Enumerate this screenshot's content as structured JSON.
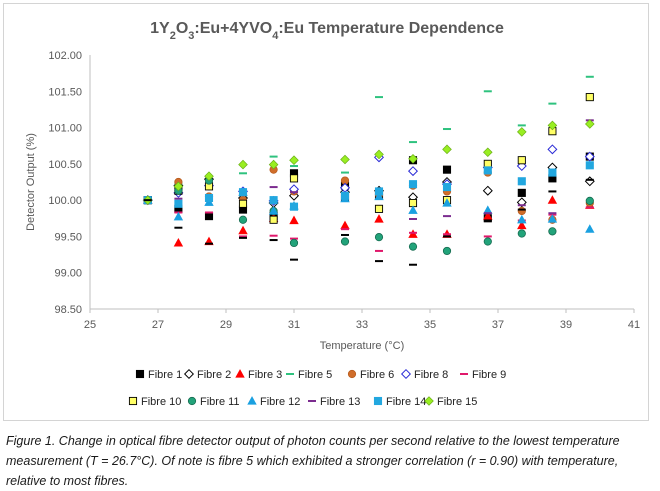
{
  "chart_data": {
    "type": "scatter",
    "title": "1Y₂O₃:Eu+4YVO₄:Eu Temperature Dependence",
    "xlabel": "Temperature (°C)",
    "ylabel": "Detector Output (%)",
    "xlim": [
      25,
      41
    ],
    "ylim": [
      98.5,
      102.0
    ],
    "x_ticks": [
      25,
      27,
      29,
      31,
      33,
      35,
      37,
      39,
      41
    ],
    "y_ticks": [
      "98.50",
      "99.00",
      "99.50",
      "100.00",
      "100.50",
      "101.00",
      "101.50",
      "102.00"
    ],
    "grid": false,
    "legend_position": "bottom",
    "series": [
      {
        "name": "Fibre 1",
        "marker": "square",
        "color": "#000000",
        "stroke": "#000000",
        "points": [
          [
            26.7,
            100.0
          ],
          [
            27.6,
            99.88
          ],
          [
            28.5,
            99.78
          ],
          [
            29.5,
            99.87
          ],
          [
            30.4,
            99.78
          ],
          [
            31.0,
            100.37
          ],
          [
            32.5,
            100.2
          ],
          [
            33.5,
            100.06
          ],
          [
            34.5,
            100.55
          ],
          [
            35.5,
            100.42
          ],
          [
            36.7,
            99.75
          ],
          [
            37.7,
            100.1
          ],
          [
            38.6,
            100.3
          ],
          [
            39.7,
            100.6
          ]
        ]
      },
      {
        "name": "Fibre 2",
        "marker": "diamond-open",
        "color": "#ffffff",
        "stroke": "#000000",
        "points": [
          [
            26.7,
            100.0
          ],
          [
            27.6,
            100.2
          ],
          [
            28.5,
            100.29
          ],
          [
            29.5,
            100.03
          ],
          [
            30.4,
            99.96
          ],
          [
            31.0,
            100.06
          ],
          [
            32.5,
            100.11
          ],
          [
            33.5,
            100.13
          ],
          [
            34.5,
            100.04
          ],
          [
            35.5,
            100.25
          ],
          [
            36.7,
            100.13
          ],
          [
            37.7,
            99.97
          ],
          [
            38.6,
            100.45
          ],
          [
            39.7,
            100.26
          ]
        ]
      },
      {
        "name": "Fibre 3",
        "marker": "triangle",
        "color": "#ff0000",
        "stroke": "#ff0000",
        "points": [
          [
            26.7,
            100.0
          ],
          [
            27.6,
            99.41
          ],
          [
            28.5,
            99.43
          ],
          [
            29.5,
            99.58
          ],
          [
            30.4,
            99.75
          ],
          [
            31.0,
            99.72
          ],
          [
            32.5,
            99.65
          ],
          [
            33.5,
            99.74
          ],
          [
            34.5,
            99.53
          ],
          [
            35.5,
            99.53
          ],
          [
            36.7,
            99.78
          ],
          [
            37.7,
            99.65
          ],
          [
            38.6,
            100.0
          ],
          [
            39.7,
            99.93
          ]
        ]
      },
      {
        "name": "Fibre 5",
        "marker": "dash",
        "color": "#2ec27e",
        "stroke": "#2ec27e",
        "points": [
          [
            26.7,
            100.0
          ],
          [
            27.6,
            100.23
          ],
          [
            28.5,
            100.27
          ],
          [
            29.5,
            100.37
          ],
          [
            30.4,
            100.6
          ],
          [
            31.0,
            100.47
          ],
          [
            32.5,
            100.38
          ],
          [
            33.5,
            101.42
          ],
          [
            34.5,
            100.8
          ],
          [
            35.5,
            100.98
          ],
          [
            36.7,
            101.5
          ],
          [
            37.7,
            101.03
          ],
          [
            38.6,
            101.33
          ],
          [
            39.7,
            101.7
          ]
        ]
      },
      {
        "name": "Fibre 6",
        "marker": "circle",
        "color": "#d06d2a",
        "stroke": "#b85c1e",
        "points": [
          [
            26.7,
            100.0
          ],
          [
            27.6,
            100.25
          ],
          [
            28.5,
            100.05
          ],
          [
            29.5,
            100.0
          ],
          [
            30.4,
            100.42
          ],
          [
            31.0,
            100.12
          ],
          [
            32.5,
            100.27
          ],
          [
            33.5,
            100.08
          ],
          [
            34.5,
            100.2
          ],
          [
            35.5,
            100.12
          ],
          [
            36.7,
            100.38
          ],
          [
            37.7,
            99.85
          ],
          [
            38.6,
            99.73
          ],
          [
            39.7,
            99.96
          ]
        ]
      },
      {
        "name": "Fibre 8",
        "marker": "diamond-open",
        "color": "#ffffff",
        "stroke": "#2b2bd6",
        "points": [
          [
            26.7,
            100.0
          ],
          [
            27.6,
            100.1
          ],
          [
            28.5,
            100.2
          ],
          [
            29.5,
            100.12
          ],
          [
            30.4,
            99.99
          ],
          [
            31.0,
            100.15
          ],
          [
            32.5,
            100.17
          ],
          [
            33.5,
            100.59
          ],
          [
            34.5,
            100.4
          ],
          [
            35.5,
            100.22
          ],
          [
            36.7,
            100.45
          ],
          [
            37.7,
            100.47
          ],
          [
            38.6,
            100.7
          ],
          [
            39.7,
            100.6
          ]
        ]
      },
      {
        "name": "Fibre 9",
        "marker": "dash",
        "color": "#e0186b",
        "stroke": "#e0186b",
        "points": [
          [
            26.7,
            100.0
          ],
          [
            27.6,
            99.83
          ],
          [
            28.5,
            99.83
          ],
          [
            29.5,
            99.5
          ],
          [
            30.4,
            99.51
          ],
          [
            31.0,
            99.47
          ],
          [
            32.5,
            99.6
          ],
          [
            33.5,
            99.3
          ],
          [
            34.5,
            99.55
          ],
          [
            35.5,
            99.53
          ],
          [
            36.7,
            99.5
          ],
          [
            37.7,
            99.72
          ],
          [
            38.6,
            99.8
          ],
          [
            39.7,
            99.9
          ]
        ]
      },
      {
        "name": "Fibre 10",
        "marker": "square",
        "color": "#ffff66",
        "stroke": "#000000",
        "points": [
          [
            26.7,
            100.0
          ],
          [
            27.6,
            100.13
          ],
          [
            28.5,
            100.19
          ],
          [
            29.5,
            99.95
          ],
          [
            30.4,
            99.73
          ],
          [
            31.0,
            100.3
          ],
          [
            32.5,
            100.04
          ],
          [
            33.5,
            99.88
          ],
          [
            34.5,
            99.96
          ],
          [
            35.5,
            100.0
          ],
          [
            36.7,
            100.5
          ],
          [
            37.7,
            100.55
          ],
          [
            38.6,
            100.95
          ],
          [
            39.7,
            101.42
          ]
        ]
      },
      {
        "name": "Fibre 11",
        "marker": "circle",
        "color": "#22a37a",
        "stroke": "#166b50",
        "points": [
          [
            26.7,
            100.0
          ],
          [
            27.6,
            100.13
          ],
          [
            28.5,
            100.27
          ],
          [
            29.5,
            99.73
          ],
          [
            30.4,
            99.85
          ],
          [
            31.0,
            99.41
          ],
          [
            32.5,
            99.43
          ],
          [
            33.5,
            99.49
          ],
          [
            34.5,
            99.36
          ],
          [
            35.5,
            99.3
          ],
          [
            36.7,
            99.43
          ],
          [
            37.7,
            99.54
          ],
          [
            38.6,
            99.57
          ],
          [
            39.7,
            99.99
          ]
        ]
      },
      {
        "name": "Fibre 12",
        "marker": "triangle",
        "color": "#1aa0e0",
        "stroke": "#1aa0e0",
        "points": [
          [
            26.7,
            100.0
          ],
          [
            27.6,
            99.77
          ],
          [
            28.5,
            99.97
          ],
          [
            29.5,
            100.11
          ],
          [
            30.4,
            99.85
          ],
          [
            31.0,
            99.92
          ],
          [
            32.5,
            100.02
          ],
          [
            33.5,
            100.05
          ],
          [
            34.5,
            99.86
          ],
          [
            35.5,
            99.96
          ],
          [
            36.7,
            99.86
          ],
          [
            37.7,
            99.73
          ],
          [
            38.6,
            99.74
          ],
          [
            39.7,
            99.6
          ]
        ]
      },
      {
        "name": "Fibre 13",
        "marker": "dash",
        "color": "#7b2c8f",
        "stroke": "#7b2c8f",
        "points": [
          [
            26.7,
            100.0
          ],
          [
            27.6,
            100.02
          ],
          [
            28.5,
            99.99
          ],
          [
            29.5,
            100.11
          ],
          [
            30.4,
            100.18
          ],
          [
            31.0,
            100.11
          ],
          [
            32.5,
            100.04
          ],
          [
            33.5,
            100.11
          ],
          [
            34.5,
            99.74
          ],
          [
            35.5,
            99.78
          ],
          [
            36.7,
            99.82
          ],
          [
            37.7,
            99.93
          ],
          [
            38.6,
            99.82
          ],
          [
            39.7,
            101.1
          ]
        ]
      },
      {
        "name": "Fibre 14",
        "marker": "square",
        "color": "#22a7df",
        "stroke": "#22a7df",
        "points": [
          [
            26.7,
            100.0
          ],
          [
            27.6,
            99.95
          ],
          [
            28.5,
            100.03
          ],
          [
            29.5,
            100.11
          ],
          [
            30.4,
            100.0
          ],
          [
            31.0,
            99.91
          ],
          [
            32.5,
            100.06
          ],
          [
            33.5,
            100.12
          ],
          [
            34.5,
            100.22
          ],
          [
            35.5,
            100.18
          ],
          [
            36.7,
            100.41
          ],
          [
            37.7,
            100.26
          ],
          [
            38.6,
            100.38
          ],
          [
            39.7,
            100.48
          ]
        ]
      },
      {
        "name": "Fibre 15",
        "marker": "diamond",
        "color": "#99ee22",
        "stroke": "#6cb018",
        "points": [
          [
            26.7,
            100.0
          ],
          [
            27.6,
            100.19
          ],
          [
            28.5,
            100.33
          ],
          [
            29.5,
            100.49
          ],
          [
            30.4,
            100.49
          ],
          [
            31.0,
            100.55
          ],
          [
            32.5,
            100.56
          ],
          [
            33.5,
            100.63
          ],
          [
            34.5,
            100.57
          ],
          [
            35.5,
            100.7
          ],
          [
            36.7,
            100.66
          ],
          [
            37.7,
            100.94
          ],
          [
            38.6,
            101.03
          ],
          [
            39.7,
            101.05
          ]
        ]
      },
      {
        "name": "Fibre 16",
        "marker": "dash",
        "color": "#000000",
        "stroke": "#000000",
        "points": [
          [
            26.7,
            100.0
          ],
          [
            27.6,
            99.62
          ],
          [
            28.5,
            99.4
          ],
          [
            29.5,
            99.48
          ],
          [
            30.4,
            99.45
          ],
          [
            31.0,
            99.18
          ],
          [
            32.5,
            99.52
          ],
          [
            33.5,
            99.16
          ],
          [
            34.5,
            99.11
          ],
          [
            35.5,
            99.5
          ],
          [
            36.7,
            99.72
          ],
          [
            37.7,
            99.87
          ],
          [
            38.6,
            100.12
          ],
          [
            39.7,
            100.28
          ]
        ]
      }
    ]
  },
  "caption": "Figure 1. Change in optical fibre detector output of photon counts per second relative to the lowest temperature measurement (T = 26.7°C).  Of note is fibre 5 which exhibited a stronger correlation (r = 0.90) with temperature, relative to most fibres."
}
